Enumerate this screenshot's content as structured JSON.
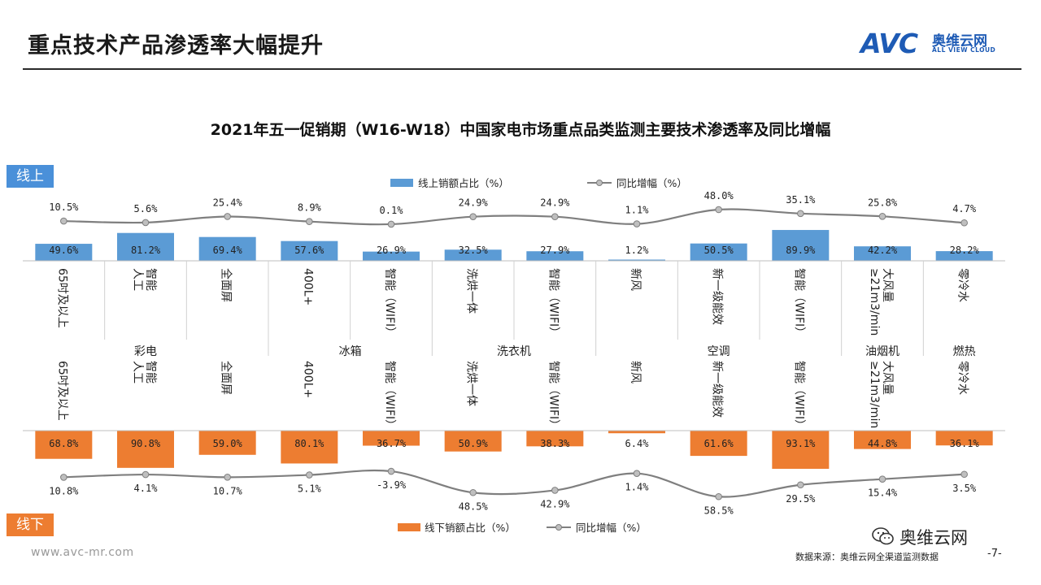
{
  "header": {
    "title": "重点技术产品渗透率大幅提升",
    "logo_mark": "AVC",
    "logo_cn": "奥维云网",
    "logo_en": "ALL VIEW CLOUD"
  },
  "badges": {
    "online": "线上",
    "offline": "线下"
  },
  "footer": {
    "url": "www.avc-mr.com",
    "source": "数据来源：奥维云网全渠道监测数据",
    "page": "-7-",
    "wechat": "奥维云网"
  },
  "colors": {
    "online_bar": "#5b9bd5",
    "offline_bar": "#ed7d31",
    "line": "#7f7f7f",
    "badge_online": "#4a90d9",
    "badge_offline": "#ed7d31"
  },
  "chart_data": {
    "type": "bar",
    "title": "2021年五一促销期（W16-W18）中国家电市场重点品类监测主要技术渗透率及同比增幅",
    "categories": [
      "65吋及以上",
      "人工智能",
      "全面屏",
      "400L+",
      "智能（WIFI）",
      "洗烘一体",
      "智能（WIFI）",
      "新风",
      "新一级能效",
      "智能（WIFI）",
      "大风量≥21m3/min",
      "零冷水"
    ],
    "category_lines": [
      [
        "65吋及以上"
      ],
      [
        "人工",
        "智能"
      ],
      [
        "全面屏"
      ],
      [
        "400L+"
      ],
      [
        "智能（WIFI）"
      ],
      [
        "洗烘一体"
      ],
      [
        "智能（WIFI）"
      ],
      [
        "新风"
      ],
      [
        "新一级能效"
      ],
      [
        "智能（WIFI）"
      ],
      [
        "≥21m3/min",
        "大风量"
      ],
      [
        "零冷水"
      ]
    ],
    "groups": [
      {
        "label": "彩电",
        "span": 3
      },
      {
        "label": "冰箱",
        "span": 2
      },
      {
        "label": "洗衣机",
        "span": 2
      },
      {
        "label": "空调",
        "span": 3
      },
      {
        "label": "油烟机",
        "span": 1
      },
      {
        "label": "燃热",
        "span": 1
      }
    ],
    "online": {
      "legend_bar": "线上销额占比（%）",
      "legend_line": "同比增幅（%）",
      "share": [
        49.6,
        81.2,
        69.4,
        57.6,
        26.9,
        32.5,
        27.9,
        1.2,
        50.5,
        89.9,
        42.2,
        28.2
      ],
      "share_labels": [
        "49.6%",
        "81.2%",
        "69.4%",
        "57.6%",
        "26.9%",
        "32.5%",
        "27.9%",
        "1.2%",
        "50.5%",
        "89.9%",
        "42.2%",
        "28.2%"
      ],
      "growth": [
        10.5,
        5.6,
        25.4,
        8.9,
        0.1,
        24.9,
        24.9,
        1.1,
        48.0,
        35.1,
        25.8,
        4.7
      ],
      "growth_labels": [
        "10.5%",
        "5.6%",
        "25.4%",
        "8.9%",
        "0.1%",
        "24.9%",
        "24.9%",
        "1.1%",
        "48.0%",
        "35.1%",
        "25.8%",
        "4.7%"
      ]
    },
    "offline": {
      "legend_bar": "线下销额占比（%）",
      "legend_line": "同比增幅（%）",
      "share": [
        68.8,
        90.8,
        59.0,
        80.1,
        36.7,
        50.9,
        38.3,
        6.4,
        61.6,
        93.1,
        44.8,
        36.1
      ],
      "share_labels": [
        "68.8%",
        "90.8%",
        "59.0%",
        "80.1%",
        "36.7%",
        "50.9%",
        "38.3%",
        "6.4%",
        "61.6%",
        "93.1%",
        "44.8%",
        "36.1%"
      ],
      "growth": [
        10.8,
        4.1,
        10.7,
        5.1,
        -3.9,
        48.5,
        42.9,
        1.4,
        58.5,
        29.5,
        15.4,
        3.5
      ],
      "growth_labels": [
        "10.8%",
        "4.1%",
        "10.7%",
        "5.1%",
        "-3.9%",
        "48.5%",
        "42.9%",
        "1.4%",
        "58.5%",
        "29.5%",
        "15.4%",
        "3.5%"
      ]
    }
  }
}
